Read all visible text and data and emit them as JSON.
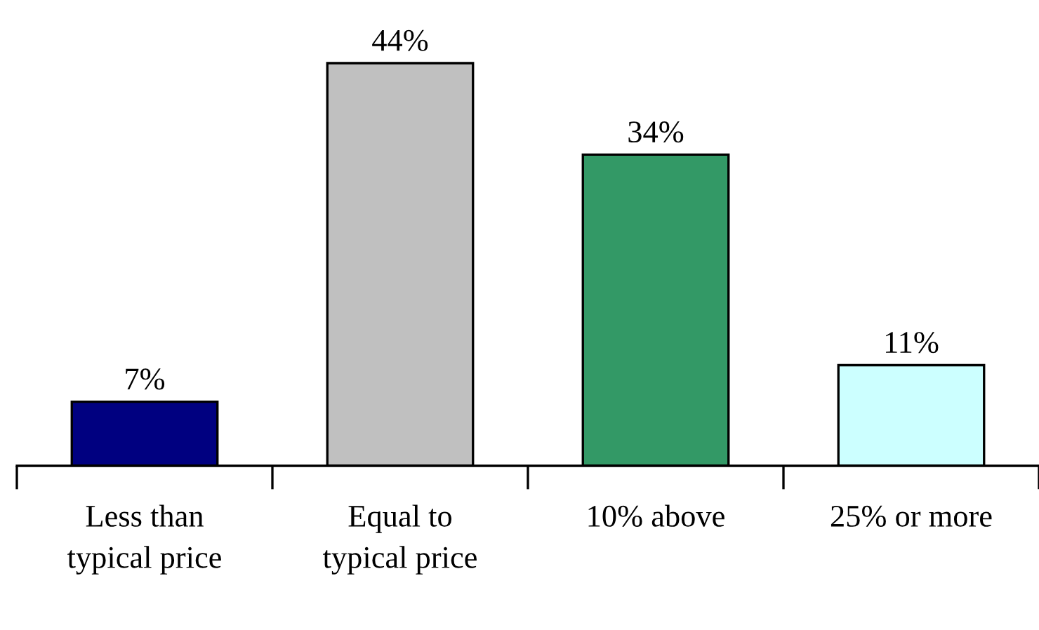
{
  "chart_data": {
    "type": "bar",
    "categories": [
      "Less than\ntypical price",
      "Equal to\ntypical price",
      "10% above",
      "25% or more"
    ],
    "values": [
      7,
      44,
      34,
      11
    ],
    "colors": [
      "#000080",
      "#c0c0c0",
      "#339966",
      "#ccffff"
    ],
    "value_labels": [
      "7%",
      "44%",
      "34%",
      "11%"
    ],
    "grid": false,
    "legend": false
  }
}
